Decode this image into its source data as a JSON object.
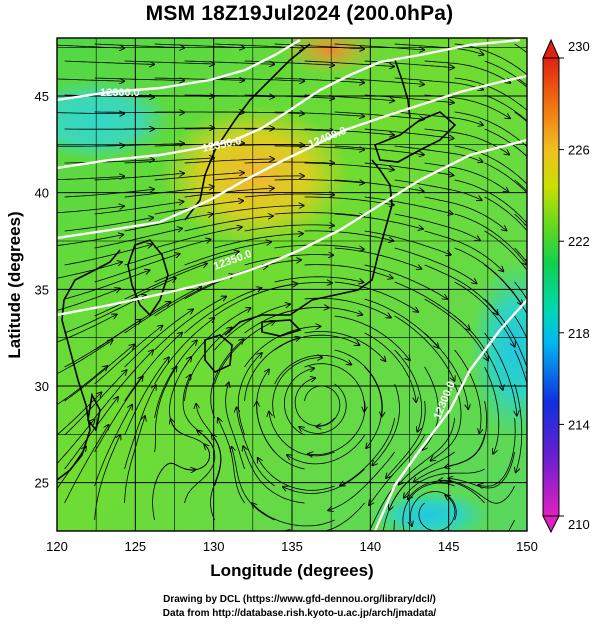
{
  "title": "MSM 18Z19Jul2024 (200.0hPa)",
  "map": {
    "lon_range": [
      120,
      150
    ],
    "lat_range": [
      22.5,
      48
    ],
    "x_ticks": [
      120,
      125,
      130,
      135,
      140,
      145,
      150
    ],
    "y_ticks": [
      25,
      30,
      35,
      40,
      45
    ],
    "xlabel": "Longitude (degrees)",
    "ylabel": "Latitude  (degrees)",
    "contour_labels": [
      "12300.0",
      "12350.0",
      "12400.0",
      "12350.0",
      "12300.0"
    ]
  },
  "colorbar": {
    "min": 210,
    "max": 230,
    "tick_labels": [
      "230",
      "226",
      "222",
      "218",
      "214",
      "210"
    ],
    "colors": [
      "#e020c0",
      "#1020d0",
      "#00c0f0",
      "#00d8a0",
      "#20d040",
      "#a0e000",
      "#f0c020",
      "#f08000",
      "#e02010"
    ]
  },
  "credits": {
    "line1": "Drawing by DCL (https://www.gfd-dennou.org/library/dcl/)",
    "line2": "Data from http://database.rish.kyoto-u.ac.jp/arch/jmadata/"
  }
}
